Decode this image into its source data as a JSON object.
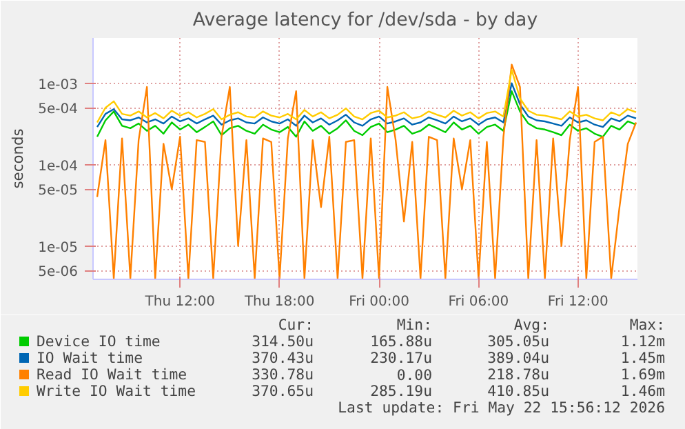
{
  "chart_data": {
    "type": "line",
    "title": "Average latency for /dev/sda - by day",
    "ylabel": "seconds",
    "log": "y",
    "grid": true,
    "legend": "bottom",
    "marker": "none",
    "line_style": "solid",
    "xlim": [
      "2026-05-21T06:45",
      "2026-05-22T15:35"
    ],
    "xticks": [
      {
        "value": "2026-05-21T12:00",
        "label": "Thu 12:00"
      },
      {
        "value": "2026-05-21T18:00",
        "label": "Thu 18:00"
      },
      {
        "value": "2026-05-22T00:00",
        "label": "Fri 00:00"
      },
      {
        "value": "2026-05-22T06:00",
        "label": "Fri 06:00"
      },
      {
        "value": "2026-05-22T12:00",
        "label": "Fri 12:00"
      }
    ],
    "ylim": [
      3.9e-06,
      0.0036
    ],
    "yticks": [
      {
        "value": 0.001,
        "label": "1e-03"
      },
      {
        "value": 0.0005,
        "label": "5e-04"
      },
      {
        "value": 0.0001,
        "label": "1e-04"
      },
      {
        "value": 5e-05,
        "label": "5e-05"
      },
      {
        "value": 1e-05,
        "label": "1e-05"
      },
      {
        "value": 5e-06,
        "label": "5e-06"
      }
    ],
    "x": [
      "2026-05-21T07:00",
      "2026-05-21T07:30",
      "2026-05-21T08:00",
      "2026-05-21T08:30",
      "2026-05-21T09:00",
      "2026-05-21T09:30",
      "2026-05-21T10:00",
      "2026-05-21T10:30",
      "2026-05-21T11:00",
      "2026-05-21T11:30",
      "2026-05-21T12:00",
      "2026-05-21T12:30",
      "2026-05-21T13:00",
      "2026-05-21T13:30",
      "2026-05-21T14:00",
      "2026-05-21T14:30",
      "2026-05-21T15:00",
      "2026-05-21T15:30",
      "2026-05-21T16:00",
      "2026-05-21T16:30",
      "2026-05-21T17:00",
      "2026-05-21T17:30",
      "2026-05-21T18:00",
      "2026-05-21T18:30",
      "2026-05-21T19:00",
      "2026-05-21T19:30",
      "2026-05-21T20:00",
      "2026-05-21T20:30",
      "2026-05-21T21:00",
      "2026-05-21T21:30",
      "2026-05-21T22:00",
      "2026-05-21T22:30",
      "2026-05-21T23:00",
      "2026-05-21T23:30",
      "2026-05-22T00:00",
      "2026-05-22T00:30",
      "2026-05-22T01:00",
      "2026-05-22T01:30",
      "2026-05-22T02:00",
      "2026-05-22T02:30",
      "2026-05-22T03:00",
      "2026-05-22T03:30",
      "2026-05-22T04:00",
      "2026-05-22T04:30",
      "2026-05-22T05:00",
      "2026-05-22T05:30",
      "2026-05-22T06:00",
      "2026-05-22T06:30",
      "2026-05-22T07:00",
      "2026-05-22T07:30",
      "2026-05-22T08:00",
      "2026-05-22T08:30",
      "2026-05-22T09:00",
      "2026-05-22T09:30",
      "2026-05-22T10:00",
      "2026-05-22T10:30",
      "2026-05-22T11:00",
      "2026-05-22T11:30",
      "2026-05-22T12:00",
      "2026-05-22T12:30",
      "2026-05-22T13:00",
      "2026-05-22T13:30",
      "2026-05-22T14:00",
      "2026-05-22T14:30",
      "2026-05-22T15:00",
      "2026-05-22T15:30"
    ],
    "series": [
      {
        "name": "Device IO time",
        "color": "#00cc00",
        "values": [
          0.00022,
          0.00035,
          0.00045,
          0.0003,
          0.00028,
          0.00032,
          0.00026,
          0.0003,
          0.00024,
          0.00033,
          0.00027,
          0.00031,
          0.00025,
          0.00029,
          0.00034,
          0.00023,
          0.00028,
          0.0003,
          0.00026,
          0.00024,
          0.00031,
          0.00027,
          0.00025,
          0.00029,
          0.00022,
          0.00034,
          0.00026,
          0.0003,
          0.00024,
          0.00028,
          0.00035,
          0.00026,
          0.00023,
          0.00029,
          0.00032,
          0.00025,
          0.00027,
          0.0003,
          0.00024,
          0.00026,
          0.00031,
          0.00028,
          0.00025,
          0.00033,
          0.00027,
          0.0003,
          0.00024,
          0.00029,
          0.00031,
          0.00026,
          0.0008,
          0.00045,
          0.00032,
          0.00028,
          0.00027,
          0.00025,
          0.00023,
          0.00031,
          0.00026,
          0.00028,
          0.00024,
          0.00022,
          0.0003,
          0.00027,
          0.00034,
          0.00031
        ]
      },
      {
        "name": "IO Wait time",
        "color": "#0066b3",
        "values": [
          0.00029,
          0.00042,
          0.00048,
          0.00036,
          0.00035,
          0.00038,
          0.00033,
          0.00036,
          0.00032,
          0.00039,
          0.00034,
          0.00037,
          0.00032,
          0.00036,
          0.0004,
          0.00031,
          0.00035,
          0.00037,
          0.00033,
          0.00032,
          0.00038,
          0.00034,
          0.00032,
          0.00036,
          0.0003,
          0.0004,
          0.00033,
          0.00037,
          0.00031,
          0.00035,
          0.00041,
          0.00033,
          0.0003,
          0.00036,
          0.00039,
          0.00032,
          0.00034,
          0.00037,
          0.00031,
          0.00033,
          0.00038,
          0.00035,
          0.00032,
          0.00039,
          0.00034,
          0.00037,
          0.00031,
          0.00036,
          0.00038,
          0.00033,
          0.001,
          0.00055,
          0.00039,
          0.00035,
          0.00034,
          0.00032,
          0.0003,
          0.00038,
          0.00033,
          0.00035,
          0.00031,
          0.00029,
          0.00037,
          0.00034,
          0.0004,
          0.00037
        ]
      },
      {
        "name": "Read IO Wait time",
        "color": "#ff8000",
        "values": [
          4e-05,
          0.0002,
          4e-06,
          0.00021,
          4e-06,
          0.0002,
          0.0009,
          4e-06,
          0.00018,
          5e-05,
          0.00022,
          4e-06,
          0.0002,
          0.00019,
          4e-06,
          0.00022,
          0.0009,
          1e-05,
          0.0002,
          4e-06,
          0.00021,
          0.00019,
          4e-06,
          0.00021,
          0.0008,
          4e-06,
          0.0002,
          3e-05,
          0.00022,
          4e-06,
          0.00019,
          0.0002,
          4e-06,
          0.00021,
          4e-06,
          0.0009,
          0.0002,
          2e-05,
          0.00019,
          4e-06,
          0.00022,
          0.0002,
          4e-06,
          0.00021,
          5e-05,
          0.0002,
          4e-06,
          0.00019,
          4e-06,
          0.00022,
          0.00169,
          0.0009,
          4e-06,
          0.0002,
          4e-06,
          0.00021,
          1e-05,
          0.0002,
          0.0009,
          4e-06,
          0.00019,
          0.00022,
          4e-06,
          3e-05,
          0.00018,
          0.00033
        ]
      },
      {
        "name": "Write IO Wait time",
        "color": "#ffcc00",
        "values": [
          0.00033,
          0.0005,
          0.0006,
          0.00042,
          0.0004,
          0.00045,
          0.00038,
          0.00043,
          0.00037,
          0.00046,
          0.0004,
          0.00044,
          0.00038,
          0.00042,
          0.00048,
          0.00036,
          0.00041,
          0.00044,
          0.00039,
          0.00038,
          0.00045,
          0.0004,
          0.00038,
          0.00042,
          0.00036,
          0.00047,
          0.00039,
          0.00044,
          0.00037,
          0.00041,
          0.00049,
          0.00039,
          0.00036,
          0.00043,
          0.00046,
          0.00038,
          0.0004,
          0.00044,
          0.00037,
          0.00039,
          0.00045,
          0.00041,
          0.00038,
          0.00046,
          0.0004,
          0.00044,
          0.00037,
          0.00043,
          0.00045,
          0.00039,
          0.00146,
          0.00065,
          0.00046,
          0.00041,
          0.0004,
          0.00038,
          0.00036,
          0.00045,
          0.00039,
          0.00041,
          0.00037,
          0.00035,
          0.00044,
          0.0004,
          0.00048,
          0.00044
        ]
      }
    ],
    "annotations": [
      "Cur:",
      "Min:",
      "Avg:",
      "Max:",
      "314.50u",
      "165.88u",
      "305.05u",
      "1.12m",
      "370.43u",
      "230.17u",
      "389.04u",
      "1.45m",
      "330.78u",
      "0.00",
      "218.78u",
      "1.69m",
      "370.65u",
      "285.19u",
      "410.85u",
      "1.46m",
      "Last update: Fri May 22 15:56:12 2026"
    ]
  }
}
